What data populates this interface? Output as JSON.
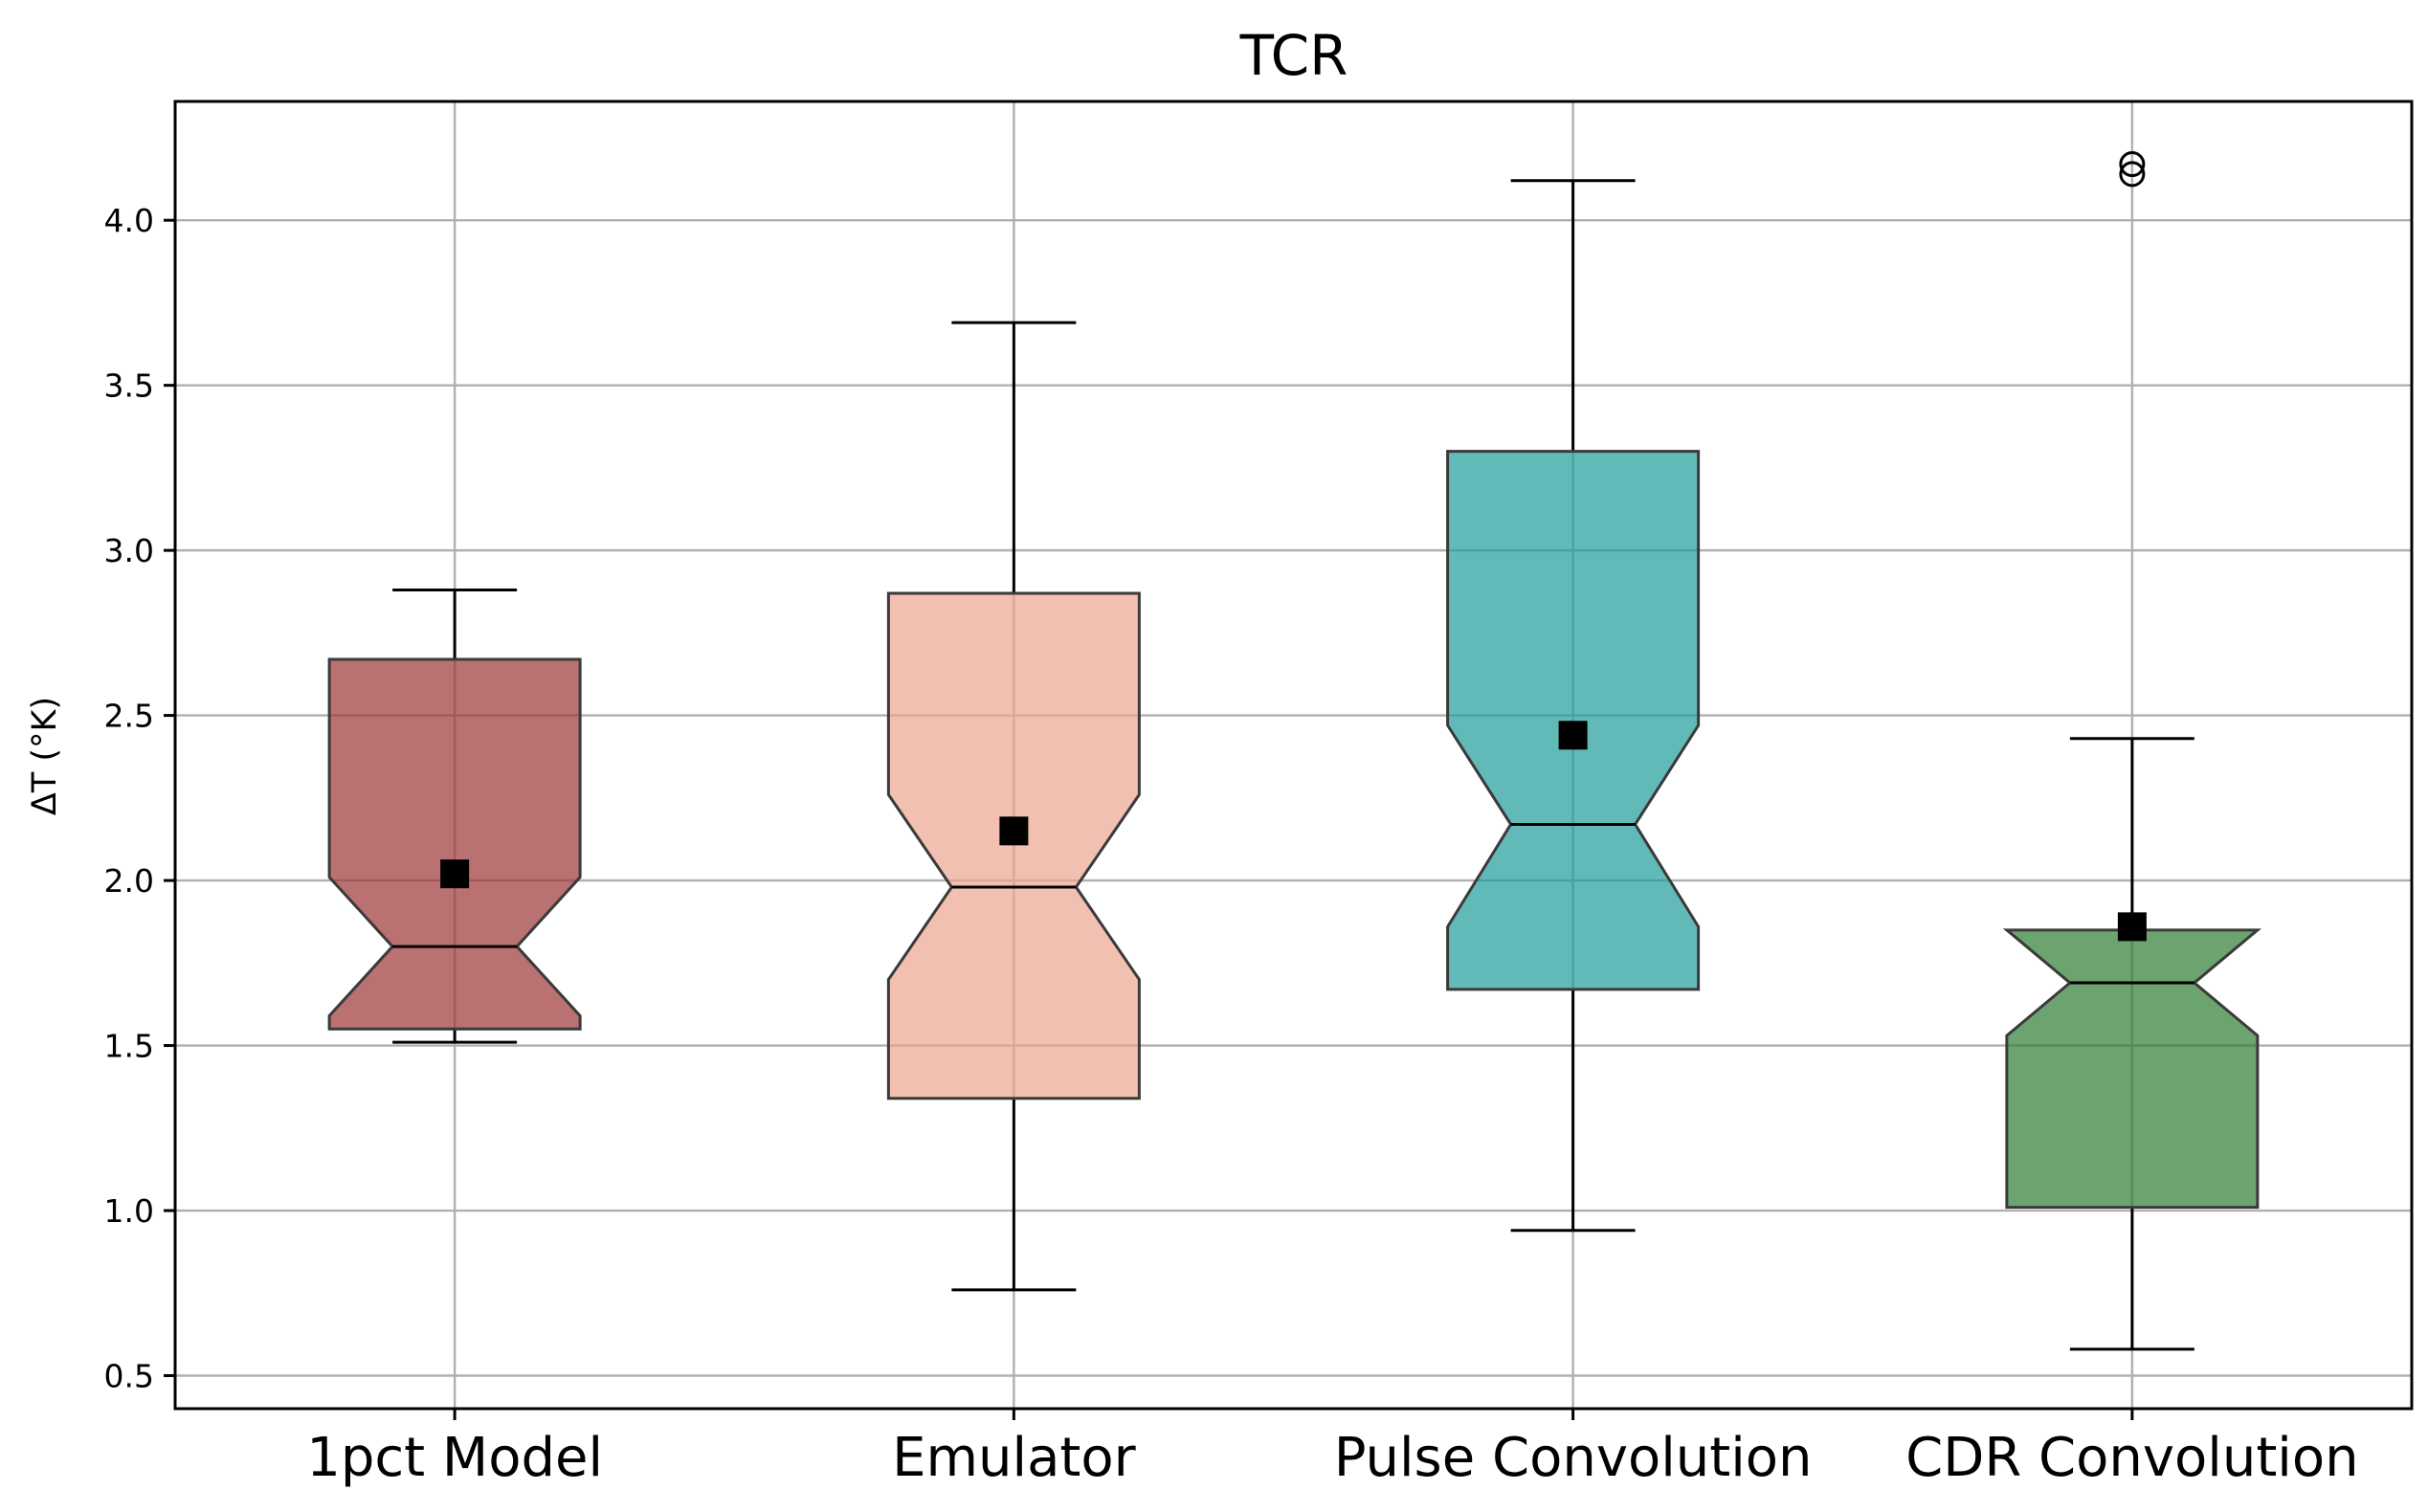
{
  "chart_data": {
    "type": "box",
    "title": "TCR",
    "xlabel": "",
    "ylabel": "ΔT (°K)",
    "ylim": [
      0.4,
      4.36
    ],
    "yticks": [
      0.5,
      1.0,
      1.5,
      2.0,
      2.5,
      3.0,
      3.5,
      4.0
    ],
    "ytick_labels": [
      "0.5",
      "1.0",
      "1.5",
      "2.0",
      "2.5",
      "3.0",
      "3.5",
      "4.0"
    ],
    "grid": true,
    "notched": true,
    "categories": [
      "1pct Model",
      "Emulator",
      "Pulse Convolution",
      "CDR Convolution"
    ],
    "series": [
      {
        "name": "1pct Model",
        "color": "#9b3434",
        "whisker_low": 1.51,
        "q1": 1.55,
        "notch_low": 1.59,
        "median": 1.8,
        "notch_high": 2.01,
        "q3": 2.67,
        "whisker_high": 2.88,
        "mean": 2.02,
        "outliers": []
      },
      {
        "name": "Emulator",
        "color": "#eda58e",
        "whisker_low": 0.76,
        "q1": 1.34,
        "notch_low": 1.7,
        "median": 1.98,
        "notch_high": 2.26,
        "q3": 2.87,
        "whisker_high": 3.69,
        "mean": 2.15,
        "outliers": []
      },
      {
        "name": "Pulse Convolution",
        "color": "#1e9c9a",
        "whisker_low": 0.94,
        "q1": 1.67,
        "notch_low": 1.86,
        "median": 2.17,
        "notch_high": 2.47,
        "q3": 3.3,
        "whisker_high": 4.12,
        "mean": 2.44,
        "outliers": []
      },
      {
        "name": "CDR Convolution",
        "color": "#2e7d32",
        "whisker_low": 0.58,
        "q1": 1.01,
        "notch_low": 1.53,
        "median": 1.69,
        "notch_high": 1.85,
        "q3": 1.85,
        "whisker_high": 2.43,
        "mean": 1.86,
        "outliers": [
          4.14,
          4.17
        ]
      }
    ]
  }
}
